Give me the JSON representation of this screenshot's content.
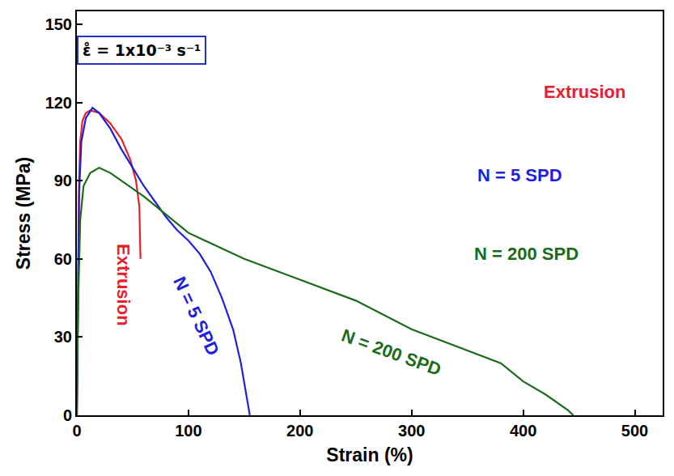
{
  "chart_data": {
    "type": "line",
    "x_label": "Strain (%)",
    "y_label": "Stress (MPa)",
    "xlim": [
      0,
      525
    ],
    "ylim": [
      0,
      155
    ],
    "xticks": [
      0,
      100,
      200,
      300,
      400,
      500
    ],
    "yticks": [
      0,
      30,
      60,
      90,
      120,
      150
    ],
    "grid": false,
    "annotations": [
      {
        "text": "ε̊ = 1x10⁻³ s⁻¹",
        "x": 58,
        "y": 140
      }
    ],
    "series": [
      {
        "name": "Extrusion",
        "color": "#e8202a",
        "x": [
          0,
          1,
          2,
          3,
          5,
          8,
          12,
          20,
          30,
          40,
          48,
          53,
          56,
          57
        ],
        "values": [
          0,
          50,
          90,
          105,
          113,
          116,
          117,
          116,
          112,
          106,
          98,
          90,
          80,
          60
        ]
      },
      {
        "name": "N = 5 SPD",
        "color": "#1f1fe0",
        "x": [
          0,
          1,
          2,
          4,
          8,
          14,
          20,
          30,
          40,
          50,
          60,
          70,
          80,
          90,
          100,
          110,
          120,
          130,
          140,
          147,
          151,
          154,
          155
        ],
        "values": [
          0,
          50,
          85,
          105,
          114,
          118,
          116,
          110,
          102,
          95,
          88,
          82,
          76,
          71,
          67,
          62,
          55,
          45,
          33,
          20,
          10,
          3,
          0
        ]
      },
      {
        "name": "N = 200 SPD",
        "color": "#1a6b1a",
        "x": [
          0,
          1,
          3,
          6,
          12,
          20,
          30,
          40,
          60,
          80,
          100,
          120,
          150,
          200,
          250,
          300,
          350,
          380,
          400,
          420,
          440,
          445
        ],
        "values": [
          0,
          40,
          75,
          88,
          93,
          95,
          93,
          90,
          84,
          77,
          70,
          66,
          60,
          52,
          44,
          33,
          25,
          20,
          13,
          8,
          2,
          0
        ]
      }
    ]
  }
}
